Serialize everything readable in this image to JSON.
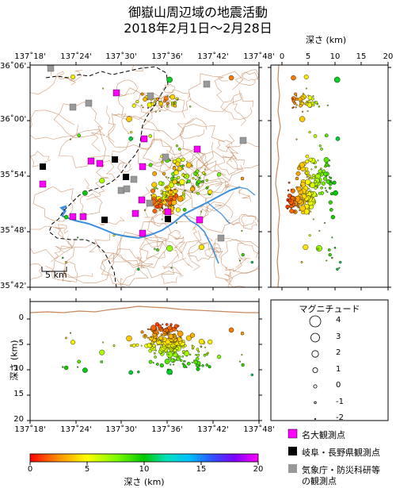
{
  "title": {
    "line1": "御嶽山周辺域の地震活動",
    "line2": "2018年2月1日〜2月28日"
  },
  "map": {
    "lon_ticks": [
      "137˚18'",
      "137˚24'",
      "137˚30'",
      "137˚36'",
      "137˚42'",
      "137˚48'"
    ],
    "lat_ticks": [
      "36˚06'",
      "36˚00'",
      "35˚54'",
      "35˚48'",
      "35˚42'"
    ],
    "scale_label": "5 km"
  },
  "depth_section_right": {
    "axis_title": "深さ (km)",
    "ticks": [
      "0",
      "5",
      "10",
      "15",
      "20"
    ]
  },
  "depth_section_bottom": {
    "axis_title": "深さ (km)",
    "ticks": [
      "0",
      "5",
      "10",
      "15",
      "20"
    ],
    "lon_ticks": [
      "137˚18'",
      "137˚24'",
      "137˚30'",
      "137˚36'",
      "137˚42'",
      "137˚48'"
    ]
  },
  "magnitude_legend": {
    "title": "マグニチュード",
    "levels": [
      "4",
      "3",
      "2",
      "1",
      "0",
      "-1",
      "-2"
    ]
  },
  "depth_colorbar": {
    "title": "深さ (km)",
    "ticks": [
      "0",
      "5",
      "10",
      "15",
      "20"
    ],
    "colors": [
      "#ff0000",
      "#ff8c00",
      "#ffff00",
      "#7cfc00",
      "#00c800",
      "#00e0c0",
      "#00bfff",
      "#3050ff",
      "#8000ff",
      "#ff00ff"
    ]
  },
  "station_legend": {
    "nagoya_univ": "名大観測点",
    "gifu_nagano": "岐阜・長野県観測点",
    "jma_nied_line1": "気象庁・防災科研等",
    "jma_nied_line2": "の観測点"
  },
  "colors": {
    "nagoya_station": "#ff00ff",
    "gifu_nagano_station": "#000000",
    "jma_station": "#999999",
    "contour": "#c8875a",
    "river": "#3a8fe0",
    "border": "#000000"
  }
}
